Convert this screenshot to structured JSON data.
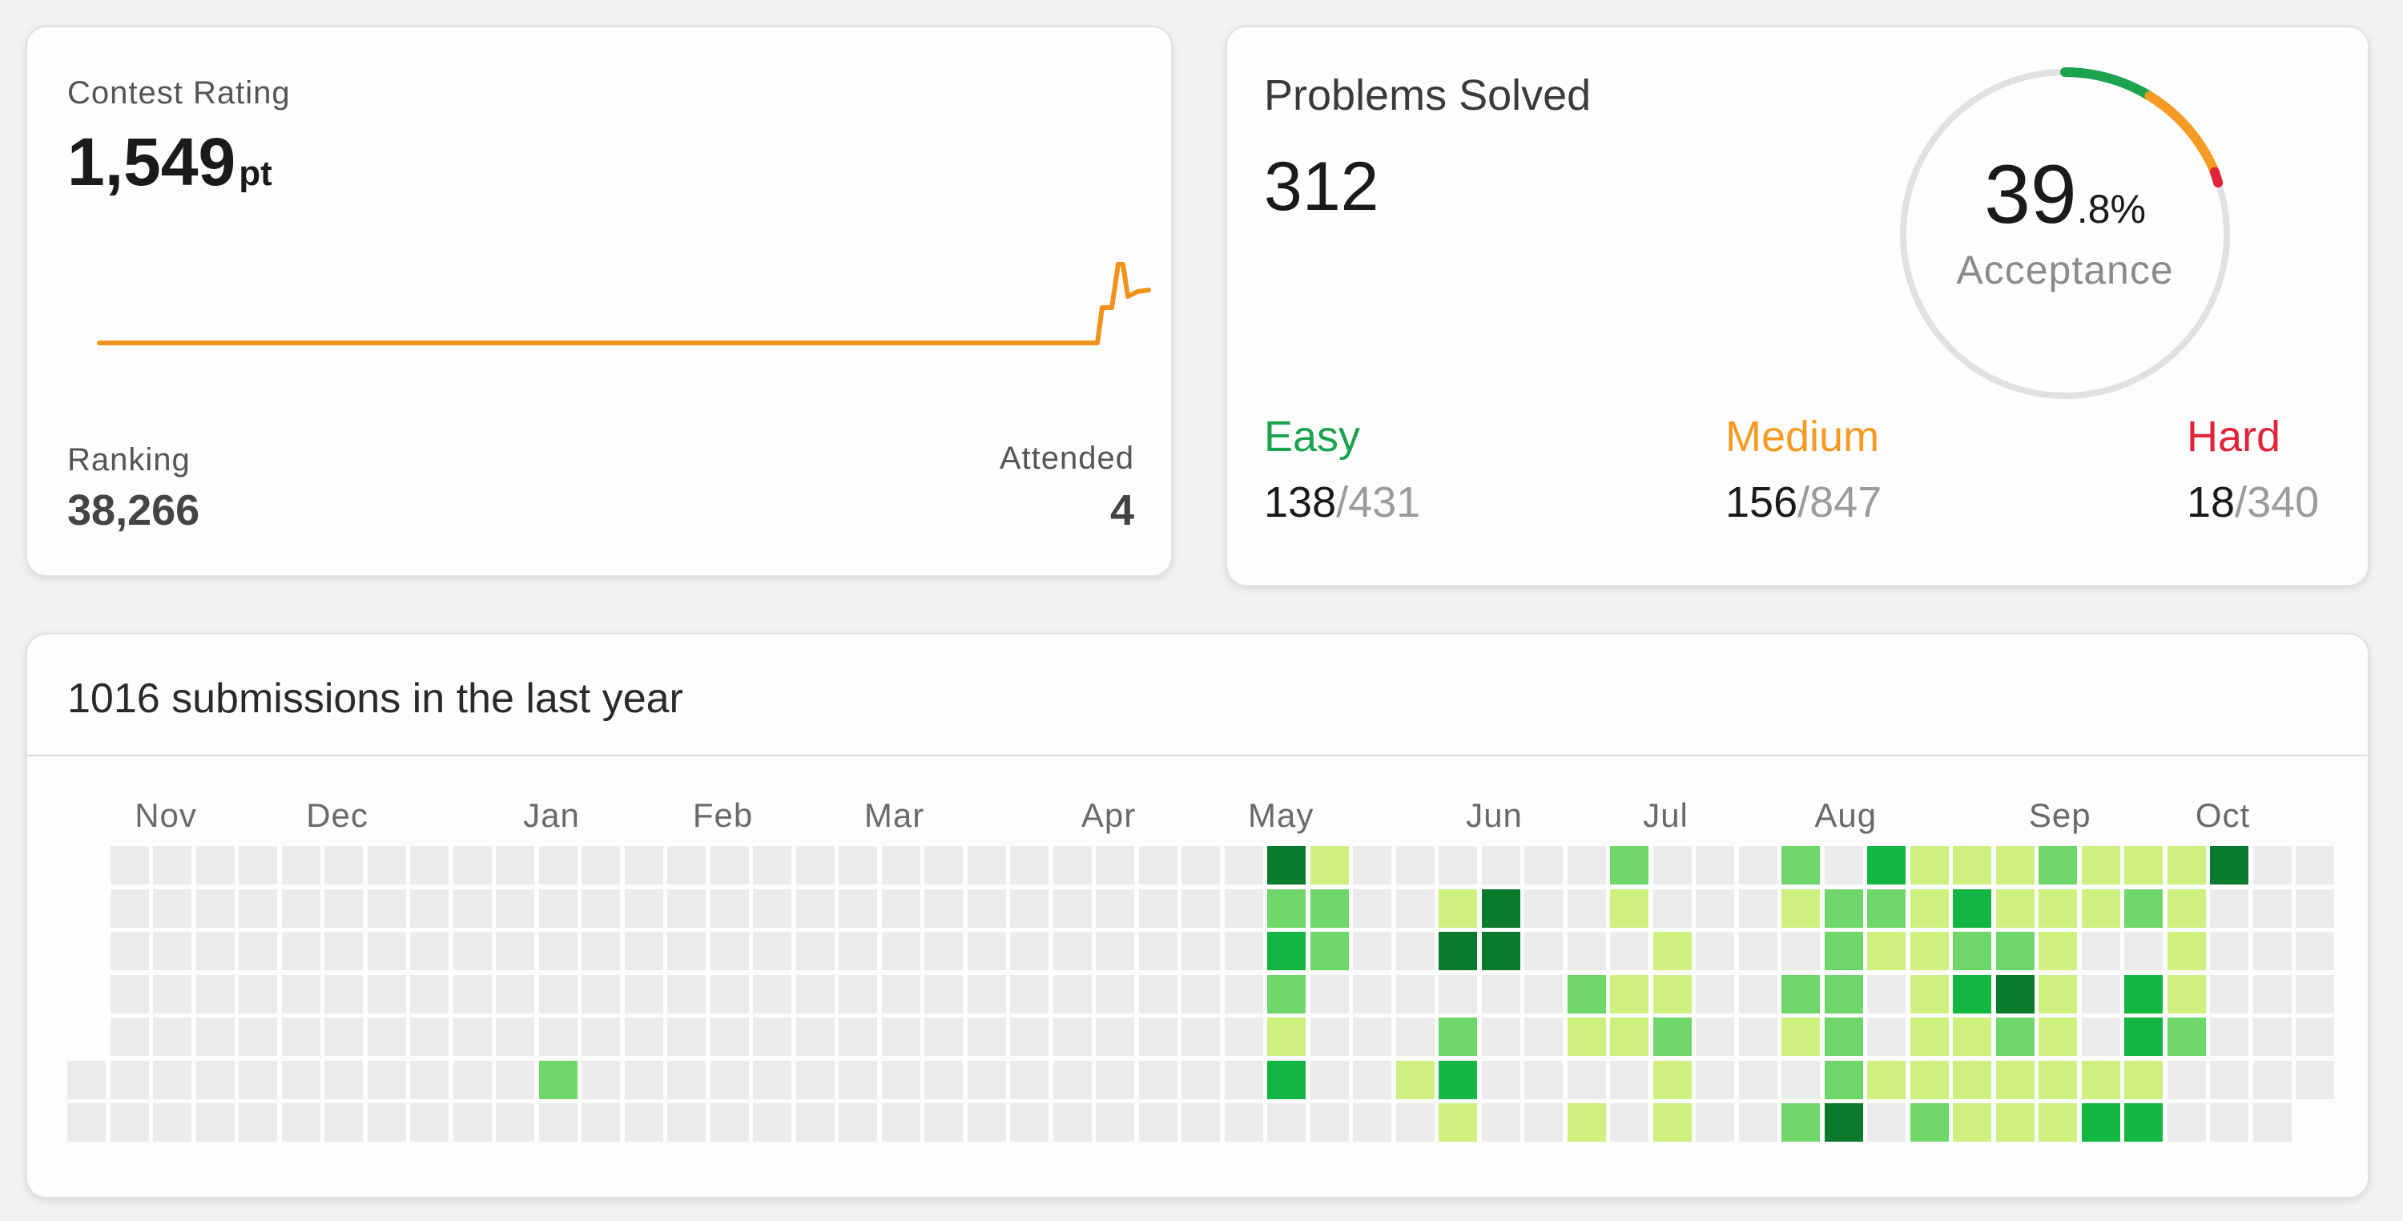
{
  "contest": {
    "label": "Contest Rating",
    "rating": "1,549",
    "rating_unit": "pt",
    "ranking_label": "Ranking",
    "ranking": "38,266",
    "attended_label": "Attended",
    "attended": "4",
    "line_color": "#f0931a"
  },
  "solved": {
    "title": "Problems Solved",
    "count": "312",
    "acceptance_int": "39",
    "acceptance_dec": ".8%",
    "acceptance_label": "Acceptance",
    "easy": {
      "label": "Easy",
      "solved": "138",
      "total": "/431",
      "color": "#1ba350"
    },
    "medium": {
      "label": "Medium",
      "solved": "156",
      "total": "/847",
      "color": "#f59a23"
    },
    "hard": {
      "label": "Hard",
      "solved": "18",
      "total": "/340",
      "color": "#e0243a"
    }
  },
  "heatmap": {
    "title": "1016 submissions in the last year",
    "months": [
      "Nov",
      "Dec",
      "Jan",
      "Feb",
      "Mar",
      "Apr",
      "May",
      "Jun",
      "Jul",
      "Aug",
      "Sep",
      "Oct"
    ],
    "colors": {
      "0": "#ebebeb",
      "1": "#cdf07f",
      "2": "#6fd66a",
      "3": "#12b640",
      "4": "#0c7a2c"
    },
    "weeks": 53,
    "first_week_start_row": 5,
    "levels_by_week": {
      "11": [
        0,
        0,
        0,
        0,
        0,
        2,
        0
      ],
      "28": [
        4,
        2,
        3,
        2,
        1,
        3,
        0
      ],
      "29": [
        1,
        2,
        2,
        0,
        0,
        0,
        0
      ],
      "31": [
        0,
        0,
        0,
        0,
        0,
        1,
        0
      ],
      "32": [
        0,
        1,
        4,
        0,
        2,
        3,
        1
      ],
      "33": [
        0,
        4,
        4,
        0,
        0,
        0,
        0
      ],
      "35": [
        0,
        0,
        0,
        2,
        1,
        0,
        1
      ],
      "36": [
        2,
        1,
        0,
        1,
        1,
        0,
        0
      ],
      "37": [
        0,
        0,
        1,
        1,
        2,
        1,
        1
      ],
      "40": [
        2,
        1,
        0,
        2,
        1,
        0,
        2
      ],
      "41": [
        0,
        2,
        2,
        2,
        2,
        2,
        4
      ],
      "42": [
        3,
        2,
        1,
        0,
        0,
        1,
        0
      ],
      "43": [
        1,
        1,
        1,
        1,
        1,
        1,
        2
      ],
      "44": [
        1,
        3,
        2,
        3,
        1,
        1,
        1
      ],
      "45": [
        1,
        1,
        2,
        4,
        2,
        1,
        1
      ],
      "46": [
        2,
        1,
        1,
        1,
        1,
        1,
        1
      ],
      "47": [
        1,
        1,
        0,
        0,
        0,
        1,
        3
      ],
      "48": [
        1,
        2,
        0,
        3,
        3,
        1,
        3
      ],
      "49": [
        1,
        1,
        1,
        1,
        2,
        0,
        0
      ],
      "50": [
        4,
        0,
        0,
        0,
        0,
        0,
        0
      ]
    }
  }
}
